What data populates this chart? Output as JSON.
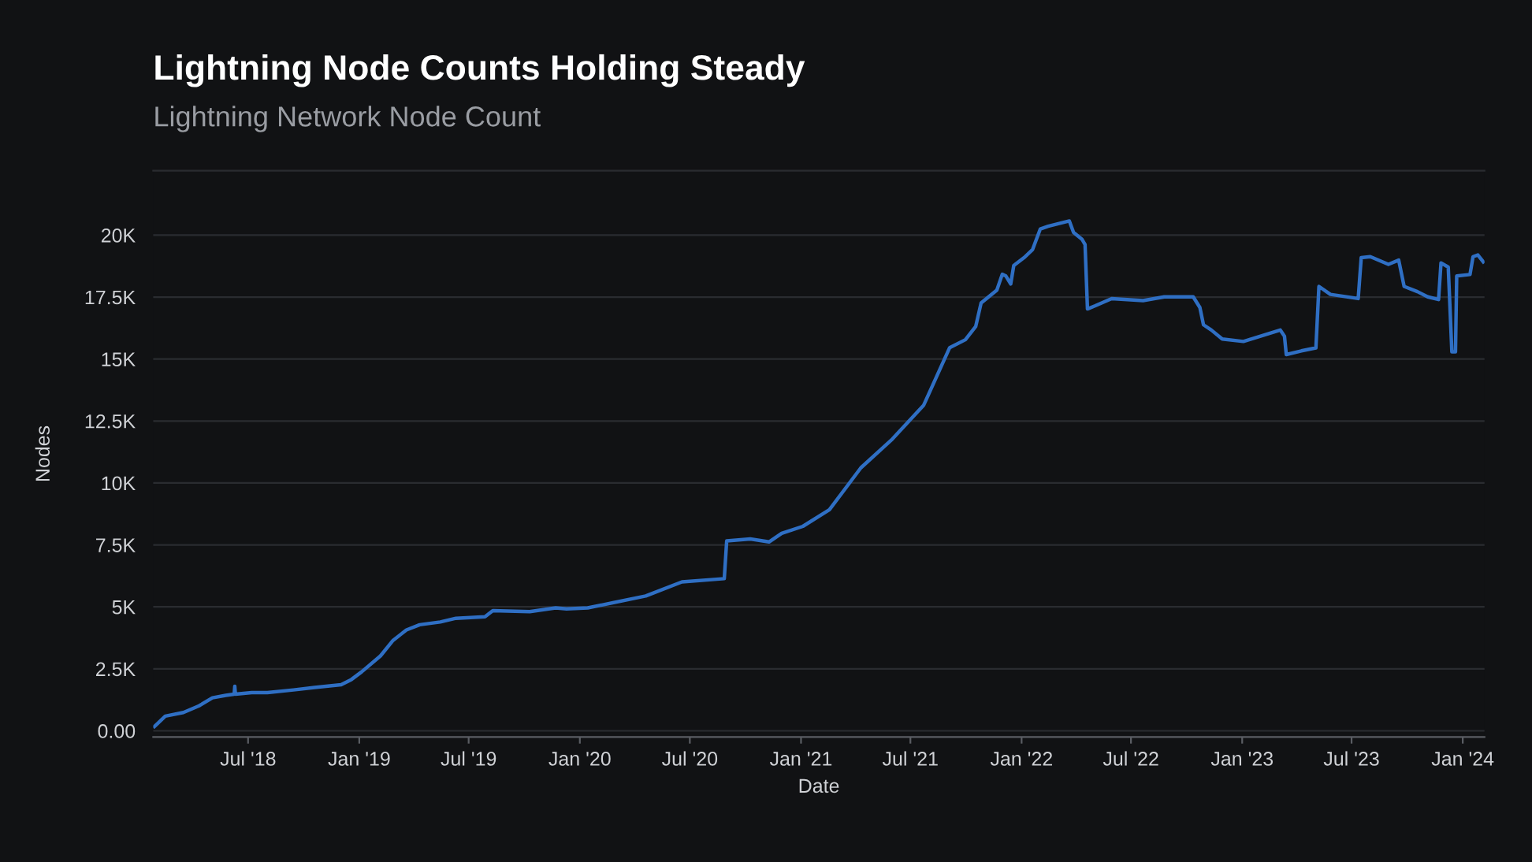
{
  "chart_data": {
    "type": "line",
    "title": "Lightning Node Counts Holding Steady",
    "subtitle": "Lightning Network Node Count",
    "xlabel": "Date",
    "ylabel": "Nodes",
    "x": [
      "2018-01-27",
      "2018-02-14",
      "2018-03-16",
      "2018-04-11",
      "2018-05-03",
      "2018-05-25",
      "2018-06-08",
      "2018-06-09",
      "2018-06-10",
      "2018-07-07",
      "2018-08-02",
      "2018-09-14",
      "2018-10-19",
      "2018-12-02",
      "2018-12-19",
      "2019-01-05",
      "2019-02-05",
      "2019-02-26",
      "2019-03-20",
      "2019-04-11",
      "2019-05-15",
      "2019-06-10",
      "2019-07-28",
      "2019-08-10",
      "2019-10-10",
      "2019-11-22",
      "2019-12-10",
      "2020-01-14",
      "2020-04-19",
      "2020-06-18",
      "2020-08-27",
      "2020-08-31",
      "2020-10-09",
      "2020-11-09",
      "2020-11-30",
      "2021-01-04",
      "2021-02-17",
      "2021-04-10",
      "2021-06-01",
      "2021-07-23",
      "2021-09-04",
      "2021-09-30",
      "2021-10-17",
      "2021-10-26",
      "2021-11-21",
      "2021-11-30",
      "2021-12-06",
      "2021-12-14",
      "2021-12-19",
      "2022-01-05",
      "2022-01-19",
      "2022-02-01",
      "2022-02-14",
      "2022-03-21",
      "2022-03-28",
      "2022-04-11",
      "2022-04-16",
      "2022-04-20",
      "2022-05-03",
      "2022-05-30",
      "2022-07-21",
      "2022-08-25",
      "2022-10-12",
      "2022-10-23",
      "2022-10-29",
      "2022-11-11",
      "2022-11-29",
      "2023-01-03",
      "2023-03-05",
      "2023-03-12",
      "2023-03-15",
      "2023-04-09",
      "2023-05-03",
      "2023-05-08",
      "2023-05-27",
      "2023-07-12",
      "2023-07-17",
      "2023-08-01",
      "2023-08-31",
      "2023-09-17",
      "2023-09-26",
      "2023-10-18",
      "2023-11-04",
      "2023-11-22",
      "2023-11-26",
      "2023-12-08",
      "2023-12-14",
      "2023-12-20",
      "2023-12-22",
      "2024-01-13",
      "2024-01-18",
      "2024-01-26",
      "2024-02-04"
    ],
    "series": [
      {
        "color": "#2f6fc4",
        "values": [
          170,
          590,
          740,
          1010,
          1330,
          1430,
          1480,
          1800,
          1480,
          1540,
          1540,
          1650,
          1750,
          1860,
          2070,
          2380,
          3020,
          3650,
          4070,
          4280,
          4390,
          4540,
          4600,
          4850,
          4810,
          4960,
          4920,
          4960,
          5440,
          6010,
          6140,
          7660,
          7740,
          7620,
          7970,
          8250,
          8920,
          10610,
          11770,
          13140,
          15460,
          15780,
          16310,
          17260,
          17780,
          18420,
          18350,
          18030,
          18770,
          19090,
          19410,
          20250,
          20360,
          20570,
          20110,
          19830,
          19620,
          17020,
          17150,
          17440,
          17360,
          17510,
          17510,
          17080,
          16380,
          16170,
          15810,
          15710,
          16170,
          15920,
          15180,
          15330,
          15450,
          17930,
          17610,
          17440,
          19090,
          19130,
          18820,
          18990,
          17930,
          17720,
          17510,
          17400,
          18880,
          18710,
          15290,
          15290,
          18350,
          18410,
          19130,
          19200,
          18920
        ]
      }
    ],
    "xlim": [
      "2018-01-25",
      "2024-02-06"
    ],
    "xticks": [
      {
        "value": "2018-07-01",
        "label": "Jul '18"
      },
      {
        "value": "2019-01-01",
        "label": "Jan '19"
      },
      {
        "value": "2019-07-01",
        "label": "Jul '19"
      },
      {
        "value": "2020-01-01",
        "label": "Jan '20"
      },
      {
        "value": "2020-07-01",
        "label": "Jul '20"
      },
      {
        "value": "2021-01-01",
        "label": "Jan '21"
      },
      {
        "value": "2021-07-01",
        "label": "Jul '21"
      },
      {
        "value": "2022-01-01",
        "label": "Jan '22"
      },
      {
        "value": "2022-07-01",
        "label": "Jul '22"
      },
      {
        "value": "2023-01-01",
        "label": "Jan '23"
      },
      {
        "value": "2023-07-01",
        "label": "Jul '23"
      },
      {
        "value": "2024-01-01",
        "label": "Jan '24"
      }
    ],
    "ylim": [
      -250,
      22600
    ],
    "yticks": [
      {
        "value": 0,
        "label": "0.00"
      },
      {
        "value": 2500,
        "label": "2.5K"
      },
      {
        "value": 5000,
        "label": "5K"
      },
      {
        "value": 7500,
        "label": "7.5K"
      },
      {
        "value": 10000,
        "label": "10K"
      },
      {
        "value": 12500,
        "label": "12.5K"
      },
      {
        "value": 15000,
        "label": "15K"
      },
      {
        "value": 17500,
        "label": "17.5K"
      },
      {
        "value": 20000,
        "label": "20K"
      }
    ],
    "grid": "y"
  }
}
